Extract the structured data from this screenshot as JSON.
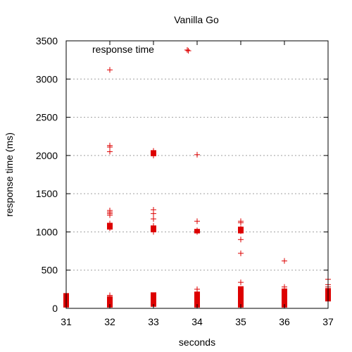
{
  "chart_data": {
    "type": "scatter",
    "title": "Vanilla Go",
    "xlabel": "seconds",
    "ylabel": "response time (ms)",
    "xlim": [
      31,
      37
    ],
    "ylim": [
      0,
      3500
    ],
    "xticks": [
      "31",
      "32",
      "33",
      "34",
      "35",
      "36",
      "37"
    ],
    "yticks": [
      "0",
      "500",
      "1000",
      "1500",
      "2000",
      "2500",
      "3000",
      "3500"
    ],
    "grid": "horizontal dotted",
    "legend_position": "top-left",
    "marker_color": "#dd0000",
    "series": [
      {
        "name": "response time",
        "marker": "plus",
        "points": [
          [
            32.0,
            3120
          ],
          [
            32.0,
            2130
          ],
          [
            32.0,
            2110
          ],
          [
            32.0,
            2050
          ],
          [
            32.0,
            1280
          ],
          [
            32.0,
            1260
          ],
          [
            32.0,
            1240
          ],
          [
            32.0,
            1220
          ],
          [
            32.0,
            1110
          ],
          [
            32.0,
            1090
          ],
          [
            32.0,
            1070
          ],
          [
            32.0,
            1050
          ],
          [
            32.0,
            170
          ],
          [
            32.0,
            150
          ],
          [
            32.0,
            130
          ],
          [
            33.0,
            2060
          ],
          [
            33.0,
            2040
          ],
          [
            33.0,
            2020
          ],
          [
            33.0,
            2000
          ],
          [
            33.0,
            1290
          ],
          [
            33.0,
            1240
          ],
          [
            33.0,
            1170
          ],
          [
            33.0,
            1080
          ],
          [
            33.0,
            1050
          ],
          [
            33.0,
            1030
          ],
          [
            33.0,
            1010
          ],
          [
            33.0,
            1000
          ],
          [
            33.8,
            3370
          ],
          [
            34.0,
            2010
          ],
          [
            34.0,
            1140
          ],
          [
            34.0,
            1020
          ],
          [
            34.0,
            1000
          ],
          [
            34.0,
            250
          ],
          [
            35.0,
            1140
          ],
          [
            35.0,
            1120
          ],
          [
            35.0,
            1040
          ],
          [
            35.0,
            1010
          ],
          [
            35.0,
            900
          ],
          [
            35.0,
            720
          ],
          [
            35.0,
            340
          ],
          [
            36.0,
            620
          ],
          [
            36.0,
            280
          ],
          [
            36.0,
            250
          ],
          [
            37.0,
            380
          ],
          [
            37.0,
            310
          ],
          [
            37.0,
            280
          ],
          [
            37.0,
            260
          ]
        ],
        "dense_ranges": [
          {
            "x": 31.0,
            "y_min": 20,
            "y_max": 190
          },
          {
            "x": 32.0,
            "y_min": 20,
            "y_max": 150
          },
          {
            "x": 32.0,
            "y_min": 1040,
            "y_max": 1110
          },
          {
            "x": 33.0,
            "y_min": 30,
            "y_max": 200
          },
          {
            "x": 33.0,
            "y_min": 1010,
            "y_max": 1070
          },
          {
            "x": 33.0,
            "y_min": 2000,
            "y_max": 2060
          },
          {
            "x": 34.0,
            "y_min": 20,
            "y_max": 210
          },
          {
            "x": 34.0,
            "y_min": 990,
            "y_max": 1030
          },
          {
            "x": 35.0,
            "y_min": 20,
            "y_max": 280
          },
          {
            "x": 35.0,
            "y_min": 990,
            "y_max": 1060
          },
          {
            "x": 36.0,
            "y_min": 20,
            "y_max": 250
          },
          {
            "x": 37.0,
            "y_min": 100,
            "y_max": 250
          }
        ]
      }
    ]
  }
}
